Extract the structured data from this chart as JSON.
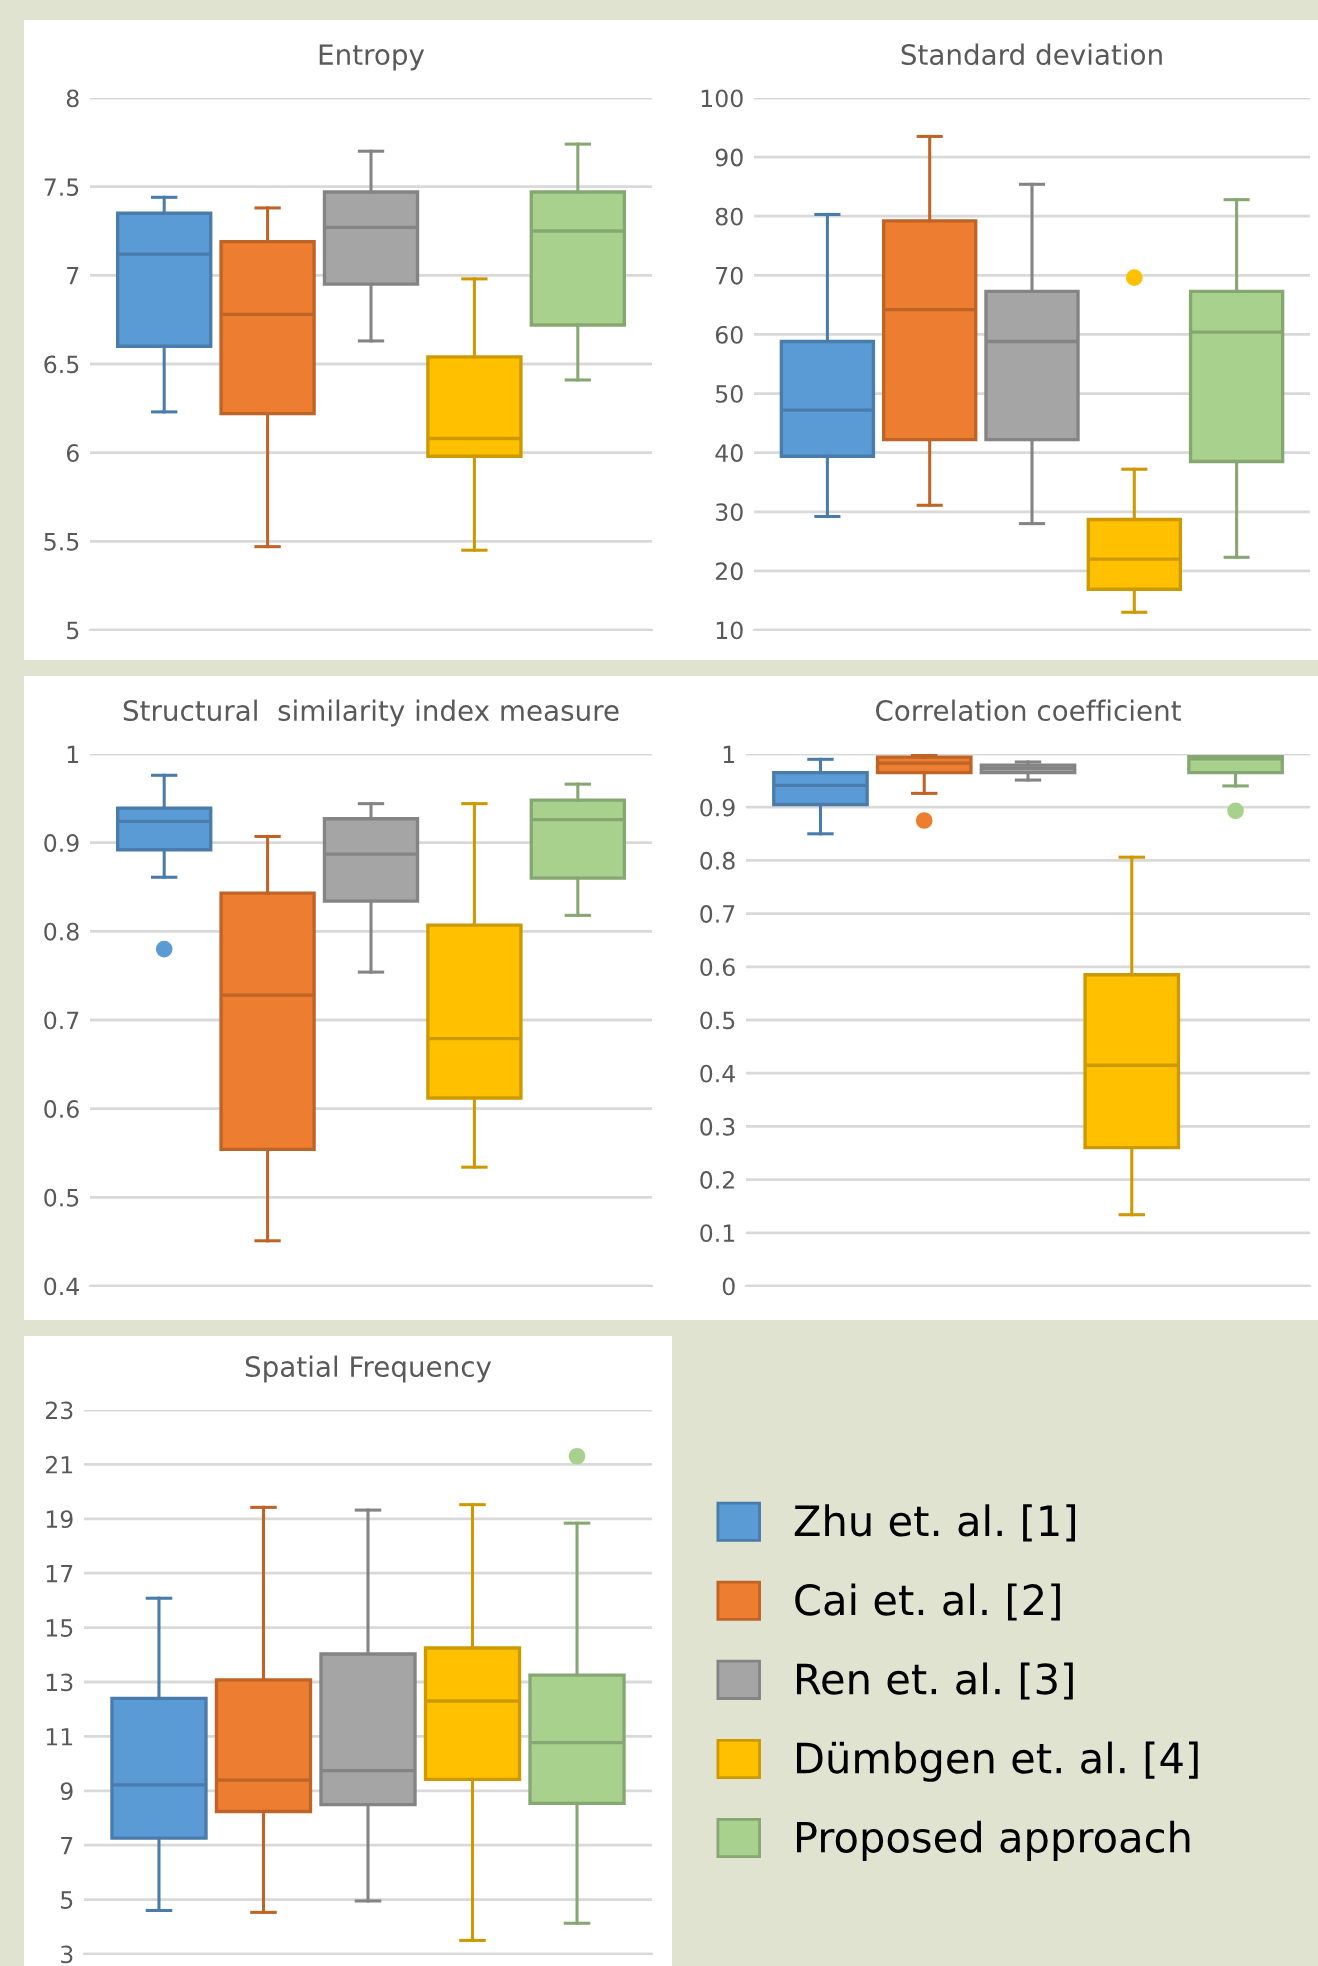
{
  "chart_data": [
    {
      "type": "box",
      "title": "Entropy",
      "categories": [
        null
      ],
      "ylim": [
        5,
        8
      ],
      "yticks": [
        5,
        5.5,
        6,
        6.5,
        7,
        7.5,
        8
      ],
      "grid": "y",
      "tick_labels": "y",
      "series": [
        {
          "color": "#5b9bd5",
          "boxes": [
            {
              "low": 6.23,
              "q1": 6.6,
              "median": 7.12,
              "q3": 7.35,
              "high": 7.44
            }
          ]
        },
        {
          "color": "#ed7d31",
          "boxes": [
            {
              "low": 5.47,
              "q1": 6.22,
              "median": 6.78,
              "q3": 7.19,
              "high": 7.38
            }
          ]
        },
        {
          "color": "#a5a5a5",
          "boxes": [
            {
              "low": 6.63,
              "q1": 6.95,
              "median": 7.27,
              "q3": 7.47,
              "high": 7.7
            }
          ]
        },
        {
          "color": "#ffc000",
          "boxes": [
            {
              "low": 5.45,
              "q1": 5.98,
              "median": 6.08,
              "q3": 6.54,
              "high": 6.98
            }
          ]
        },
        {
          "color": "#a9d18e",
          "boxes": [
            {
              "low": 6.41,
              "q1": 6.72,
              "median": 7.25,
              "q3": 7.47,
              "high": 7.74
            }
          ]
        }
      ]
    },
    {
      "type": "box",
      "title": "Standard deviation",
      "categories": [
        null
      ],
      "ylim": [
        10,
        100
      ],
      "yticks": [
        10,
        20,
        30,
        40,
        50,
        60,
        70,
        80,
        90,
        100
      ],
      "grid": "y",
      "tick_labels": "y",
      "series": [
        {
          "color": "#5b9bd5",
          "boxes": [
            {
              "low": 29.2,
              "q1": 39.4,
              "median": 47.2,
              "q3": 58.8,
              "high": 80.3
            }
          ]
        },
        {
          "color": "#ed7d31",
          "boxes": [
            {
              "low": 31.1,
              "q1": 42.2,
              "median": 64.2,
              "q3": 79.2,
              "high": 93.5
            }
          ]
        },
        {
          "color": "#a5a5a5",
          "boxes": [
            {
              "low": 28.0,
              "q1": 42.2,
              "median": 58.8,
              "q3": 67.3,
              "high": 85.4
            }
          ]
        },
        {
          "color": "#ffc000",
          "boxes": [
            {
              "low": 13.0,
              "q1": 16.9,
              "median": 22.0,
              "q3": 28.7,
              "high": 37.2,
              "outliers": [
                69.6
              ]
            }
          ]
        },
        {
          "color": "#a9d18e",
          "boxes": [
            {
              "low": 22.3,
              "q1": 38.5,
              "median": 60.4,
              "q3": 67.3,
              "high": 82.8
            }
          ]
        }
      ]
    },
    {
      "type": "box",
      "title": "Structural  similarity index measure",
      "categories": [
        null
      ],
      "ylim": [
        0.4,
        1
      ],
      "yticks": [
        0.4,
        0.5,
        0.6,
        0.7,
        0.8,
        0.9,
        1
      ],
      "grid": "y",
      "tick_labels": "y",
      "series": [
        {
          "color": "#5b9bd5",
          "boxes": [
            {
              "low": 0.861,
              "q1": 0.892,
              "median": 0.924,
              "q3": 0.939,
              "high": 0.976,
              "outliers": [
                0.78
              ]
            }
          ]
        },
        {
          "color": "#ed7d31",
          "boxes": [
            {
              "low": 0.451,
              "q1": 0.554,
              "median": 0.728,
              "q3": 0.843,
              "high": 0.907
            }
          ]
        },
        {
          "color": "#a5a5a5",
          "boxes": [
            {
              "low": 0.754,
              "q1": 0.834,
              "median": 0.887,
              "q3": 0.927,
              "high": 0.944
            }
          ]
        },
        {
          "color": "#ffc000",
          "boxes": [
            {
              "low": 0.534,
              "q1": 0.612,
              "median": 0.679,
              "q3": 0.807,
              "high": 0.944
            }
          ]
        },
        {
          "color": "#a9d18e",
          "boxes": [
            {
              "low": 0.818,
              "q1": 0.86,
              "median": 0.926,
              "q3": 0.948,
              "high": 0.966
            }
          ]
        }
      ]
    },
    {
      "type": "box",
      "title": "Correlation coefficient",
      "categories": [
        null
      ],
      "ylim": [
        0,
        1
      ],
      "yticks": [
        0,
        0.1,
        0.2,
        0.3,
        0.4,
        0.5,
        0.6,
        0.7,
        0.8,
        0.9,
        1
      ],
      "grid": "y",
      "tick_labels": "y",
      "series": [
        {
          "color": "#5b9bd5",
          "boxes": [
            {
              "low": 0.85,
              "q1": 0.905,
              "median": 0.941,
              "q3": 0.965,
              "high": 0.99
            }
          ]
        },
        {
          "color": "#ed7d31",
          "boxes": [
            {
              "low": 0.926,
              "q1": 0.965,
              "median": 0.983,
              "q3": 0.994,
              "high": 0.999,
              "outliers": [
                0.875
              ]
            }
          ]
        },
        {
          "color": "#a5a5a5",
          "boxes": [
            {
              "low": 0.951,
              "q1": 0.965,
              "median": 0.973,
              "q3": 0.979,
              "high": 0.985
            }
          ]
        },
        {
          "color": "#ffc000",
          "boxes": [
            {
              "low": 0.134,
              "q1": 0.26,
              "median": 0.415,
              "q3": 0.585,
              "high": 0.806
            }
          ]
        },
        {
          "color": "#a9d18e",
          "boxes": [
            {
              "low": 0.94,
              "q1": 0.965,
              "median": 0.991,
              "q3": 0.995,
              "high": 0.995,
              "outliers": [
                0.893
              ]
            }
          ]
        }
      ]
    },
    {
      "type": "box",
      "title": "Spatial Frequency",
      "categories": [
        null
      ],
      "ylim": [
        3,
        23
      ],
      "yticks": [
        3,
        5,
        7,
        9,
        11,
        13,
        15,
        17,
        19,
        21,
        23
      ],
      "grid": "y",
      "tick_labels": "y",
      "legend": "right",
      "series": [
        {
          "name": "Zhu et. al. [1]",
          "color": "#5b9bd5",
          "boxes": [
            {
              "low": 4.6,
              "q1": 7.26,
              "median": 9.22,
              "q3": 12.4,
              "high": 16.08
            }
          ]
        },
        {
          "name": "Cai et. al. [2]",
          "color": "#ed7d31",
          "boxes": [
            {
              "low": 4.53,
              "q1": 8.24,
              "median": 9.39,
              "q3": 13.08,
              "high": 19.42
            }
          ]
        },
        {
          "name": "Ren et. al. [3]",
          "color": "#a5a5a5",
          "boxes": [
            {
              "low": 4.95,
              "q1": 8.49,
              "median": 9.74,
              "q3": 14.03,
              "high": 19.32
            }
          ]
        },
        {
          "name": "Dümbgen et. al. [4]",
          "color": "#ffc000",
          "boxes": [
            {
              "low": 3.5,
              "q1": 9.42,
              "median": 12.3,
              "q3": 14.25,
              "high": 19.52
            }
          ]
        },
        {
          "name": "Proposed approach",
          "color": "#a9d18e",
          "boxes": [
            {
              "low": 4.13,
              "q1": 8.54,
              "median": 10.77,
              "q3": 13.25,
              "high": 18.84,
              "outliers": [
                21.3
              ]
            }
          ]
        }
      ]
    }
  ]
}
